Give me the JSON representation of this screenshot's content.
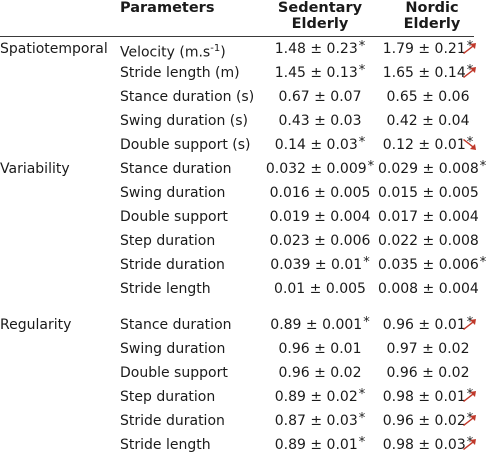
{
  "header": {
    "parameters": "Parameters",
    "sedentary_line1": "Sedentary",
    "sedentary_line2": "Elderly",
    "nordic_line1": "Nordic",
    "nordic_line2": "Elderly"
  },
  "colors": {
    "arrow": "#c0392b",
    "text": "#1a1a1a",
    "rule": "#3a3a3a"
  },
  "groups": [
    {
      "name": "Spatiotemporal",
      "rows": [
        {
          "param": "Velocity (m.s",
          "param_sup": "-1",
          "param_tail": ")",
          "sed": "1.48 ± 0.23",
          "sed_star": "*",
          "nor": "1.79 ± 0.21",
          "nor_star": "*",
          "arrow": "up"
        },
        {
          "param": "Stride length (m)",
          "sed": "1.45 ± 0.13",
          "sed_star": "*",
          "nor": "1.65 ± 0.14",
          "nor_star": "*",
          "arrow": "up"
        },
        {
          "param": "Stance duration (s)",
          "sed": "0.67 ± 0.07",
          "sed_star": "",
          "nor": "0.65 ± 0.06",
          "nor_star": "",
          "arrow": ""
        },
        {
          "param": "Swing duration (s)",
          "sed": "0.43 ± 0.03",
          "sed_star": "",
          "nor": "0.42 ± 0.04",
          "nor_star": "",
          "arrow": ""
        },
        {
          "param": "Double support (s)",
          "sed": "0.14 ± 0.03",
          "sed_star": "*",
          "nor": "0.12 ± 0.01",
          "nor_star": "*",
          "arrow": "down"
        }
      ]
    },
    {
      "name": "Variability",
      "rows": [
        {
          "param": "Stance duration",
          "sed": "0.032 ± 0.009",
          "sed_star": "*",
          "nor": "0.029 ± 0.008",
          "nor_star": "*",
          "arrow": ""
        },
        {
          "param": "Swing duration",
          "sed": "0.016 ± 0.005",
          "sed_star": "",
          "nor": "0.015 ± 0.005",
          "nor_star": "",
          "arrow": ""
        },
        {
          "param": "Double support",
          "sed": "0.019 ± 0.004",
          "sed_star": "",
          "nor": "0.017 ± 0.004",
          "nor_star": "",
          "arrow": ""
        },
        {
          "param": "Step duration",
          "sed": "0.023 ± 0.006",
          "sed_star": "",
          "nor": "0.022 ± 0.008",
          "nor_star": "",
          "arrow": ""
        },
        {
          "param": "Stride duration",
          "sed": "0.039 ± 0.01",
          "sed_star": "*",
          "nor": "0.035 ± 0.006",
          "nor_star": "*",
          "arrow": ""
        },
        {
          "param": "Stride length",
          "sed": "0.01 ± 0.005",
          "sed_star": "",
          "nor": "0.008 ± 0.004",
          "nor_star": "",
          "arrow": ""
        }
      ]
    },
    {
      "name": "Regularity",
      "rows": [
        {
          "param": "Stance duration",
          "sed": "0.89 ± 0.001",
          "sed_star": "*",
          "nor": "0.96 ± 0.01",
          "nor_star": "*",
          "arrow": "up"
        },
        {
          "param": "Swing duration",
          "sed": "0.96 ± 0.01",
          "sed_star": "",
          "nor": "0.97 ± 0.02",
          "nor_star": "",
          "arrow": ""
        },
        {
          "param": "Double support",
          "sed": "0.96 ± 0.02",
          "sed_star": "",
          "nor": "0.96 ± 0.02",
          "nor_star": "",
          "arrow": ""
        },
        {
          "param": "Step duration",
          "sed": "0.89 ± 0.02",
          "sed_star": "*",
          "nor": "0.98 ± 0.01",
          "nor_star": "*",
          "arrow": "up"
        },
        {
          "param": "Stride duration",
          "sed": "0.87 ± 0.03",
          "sed_star": "*",
          "nor": "0.96 ± 0.02",
          "nor_star": "*",
          "arrow": "up"
        },
        {
          "param": "Stride length",
          "sed": "0.89 ± 0.01",
          "sed_star": "*",
          "nor": "0.98 ± 0.03",
          "nor_star": "*",
          "arrow": "up"
        }
      ]
    }
  ]
}
